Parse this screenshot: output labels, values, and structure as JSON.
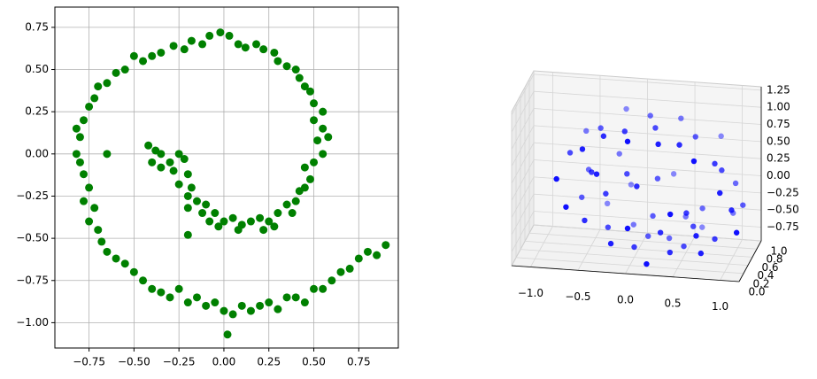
{
  "chart_data": [
    {
      "type": "scatter",
      "color": "#008000",
      "grid": true,
      "xlim": [
        -0.94,
        0.97
      ],
      "ylim": [
        -1.15,
        0.87
      ],
      "xticks": [
        {
          "value": -0.75,
          "label": "−0.75"
        },
        {
          "value": -0.5,
          "label": "−0.50"
        },
        {
          "value": -0.25,
          "label": "−0.25"
        },
        {
          "value": 0,
          "label": "0.00"
        },
        0.25,
        {
          "value": 0.5,
          "label": "0.50"
        },
        0.75
      ],
      "yticks": [
        {
          "value": -1,
          "label": "−1.00"
        },
        {
          "value": -0.75,
          "label": "−0.75"
        },
        {
          "value": -0.5,
          "label": "−0.50"
        },
        {
          "value": -0.25,
          "label": "−0.25"
        },
        {
          "value": 0,
          "label": "0.00"
        },
        0.25,
        {
          "value": 0.5,
          "label": "0.50"
        },
        0.75
      ],
      "x": [
        -0.42,
        -0.38,
        -0.35,
        -0.4,
        -0.3,
        -0.25,
        -0.22,
        -0.28,
        -0.35,
        -0.2,
        -0.25,
        -0.18,
        -0.2,
        -0.15,
        -0.1,
        -0.2,
        -0.12,
        -0.05,
        -0.08,
        0,
        0.05,
        -0.03,
        0.1,
        0.08,
        0.15,
        0.2,
        0.22,
        0.25,
        0.3,
        0.28,
        0.35,
        0.38,
        0.4,
        0.42,
        0.45,
        0.48,
        0.45,
        0.5,
        0.55,
        0.52,
        0.58,
        0.55,
        0.5,
        0.55,
        0.5,
        0.48,
        0.45,
        0.42,
        0.4,
        0.35,
        0.3,
        0.28,
        0.22,
        0.18,
        0.12,
        0.08,
        0.03,
        -0.02,
        -0.08,
        -0.12,
        -0.18,
        -0.22,
        -0.28,
        -0.35,
        -0.4,
        -0.45,
        -0.5,
        -0.55,
        -0.6,
        -0.65,
        -0.7,
        -0.72,
        -0.75,
        -0.78,
        -0.82,
        -0.8,
        -0.82,
        -0.8,
        -0.78,
        -0.75,
        -0.78,
        -0.72,
        -0.75,
        -0.7,
        -0.68,
        -0.65,
        -0.6,
        -0.55,
        -0.5,
        -0.45,
        -0.4,
        -0.35,
        -0.3,
        -0.25,
        -0.2,
        -0.15,
        -0.1,
        -0.05,
        0,
        0.05,
        0.1,
        0.15,
        0.2,
        0.25,
        0.3,
        0.35,
        0.4,
        0.45,
        0.5,
        0.55,
        0.6,
        0.65,
        0.7,
        0.75,
        0.8,
        0.85,
        0.9,
        0.02,
        -0.65,
        -0.2
      ],
      "values": [
        0.05,
        0.02,
        0,
        -0.05,
        -0.05,
        0,
        -0.03,
        -0.1,
        -0.08,
        -0.12,
        -0.18,
        -0.2,
        -0.25,
        -0.28,
        -0.3,
        -0.32,
        -0.35,
        -0.35,
        -0.4,
        -0.4,
        -0.38,
        -0.43,
        -0.42,
        -0.45,
        -0.4,
        -0.38,
        -0.45,
        -0.4,
        -0.35,
        -0.43,
        -0.3,
        -0.35,
        -0.28,
        -0.22,
        -0.2,
        -0.15,
        -0.08,
        -0.05,
        0,
        0.08,
        0.1,
        0.15,
        0.2,
        0.25,
        0.3,
        0.37,
        0.4,
        0.45,
        0.5,
        0.52,
        0.55,
        0.6,
        0.62,
        0.65,
        0.63,
        0.65,
        0.7,
        0.72,
        0.7,
        0.65,
        0.67,
        0.62,
        0.64,
        0.6,
        0.58,
        0.55,
        0.58,
        0.5,
        0.48,
        0.42,
        0.4,
        0.33,
        0.28,
        0.2,
        0.15,
        0.1,
        0,
        -0.05,
        -0.12,
        -0.2,
        -0.28,
        -0.32,
        -0.4,
        -0.45,
        -0.52,
        -0.58,
        -0.62,
        -0.65,
        -0.7,
        -0.75,
        -0.8,
        -0.82,
        -0.85,
        -0.8,
        -0.88,
        -0.85,
        -0.9,
        -0.88,
        -0.93,
        -0.95,
        -0.9,
        -0.93,
        -0.9,
        -0.88,
        -0.92,
        -0.85,
        -0.85,
        -0.88,
        -0.8,
        -0.8,
        -0.75,
        -0.7,
        -0.68,
        -0.62,
        -0.58,
        -0.6,
        -0.54,
        -1.07,
        0,
        -0.48
      ]
    },
    {
      "type": "scatter3d",
      "color": "#0000ff",
      "xlim": [
        -1.2,
        1.2
      ],
      "ylim": [
        0,
        1
      ],
      "zlim": [
        -0.95,
        1.3
      ],
      "xticks": [
        {
          "value": -1,
          "label": "−1.0"
        },
        {
          "value": -0.5,
          "label": "−0.5"
        },
        {
          "value": 0,
          "label": "0.0"
        },
        0.5,
        {
          "value": 1,
          "label": "1.0"
        }
      ],
      "yticks": [
        {
          "value": 0,
          "label": "0.0"
        },
        0.2,
        0.4,
        0.6,
        0.8,
        {
          "value": 1,
          "label": "1.0"
        }
      ],
      "zticks": [
        {
          "value": -0.75,
          "label": "−0.75"
        },
        {
          "value": -0.5,
          "label": "−0.50"
        },
        {
          "value": -0.25,
          "label": "−0.25"
        },
        {
          "value": 0,
          "label": "0.00"
        },
        0.25,
        {
          "value": 0.5,
          "label": "0.50"
        },
        0.75,
        {
          "value": 1,
          "label": "1.00"
        },
        1.25
      ],
      "x": [
        -0.75,
        -0.7,
        -0.6,
        -0.5,
        -0.4,
        -0.3,
        -0.2,
        -0.1,
        0,
        0.1,
        0.2,
        0.3,
        0.4,
        0.5,
        0.6,
        0.7,
        0.8,
        0.85,
        0.9,
        0.95,
        1.0,
        1.05,
        1.1,
        1.15,
        0.95,
        0.85,
        0.75,
        0.6,
        0.5,
        0.4,
        0.3,
        0.2,
        0.1,
        0,
        -0.1,
        -0.2,
        -0.3,
        -0.4,
        -0.5,
        -0.6,
        -0.65,
        -0.55,
        -0.45,
        -0.35,
        -0.25,
        -0.1,
        0.05,
        0.2,
        0.3,
        0.45,
        0.55,
        0.65,
        0.7,
        0.6,
        0.45,
        0.3,
        0.15,
        0,
        -0.15,
        -0.3
      ],
      "y": [
        0.1,
        0.5,
        0.8,
        0.2,
        0.6,
        0.3,
        0.9,
        0.4,
        0.1,
        0.7,
        0.5,
        0.2,
        0.8,
        0.3,
        0.6,
        0.1,
        0.9,
        0.4,
        0.5,
        0.2,
        0.7,
        0.3,
        0.6,
        0.1,
        0.8,
        0.4,
        0.2,
        0.9,
        0.5,
        0.3,
        0.7,
        0.1,
        0.6,
        0.4,
        0.8,
        0.2,
        0.5,
        0.9,
        0.3,
        0.6,
        0.1,
        0.7,
        0.4,
        0.2,
        0.8,
        0.5,
        0.3,
        0.6,
        0.9,
        0.1,
        0.4,
        0.7,
        0.2,
        0.5,
        0.8,
        0.3,
        0.6,
        0.1,
        0.9,
        0.4
      ],
      "z": [
        0.3,
        0.45,
        0.6,
        0.7,
        0.78,
        0.85,
        0.9,
        0.88,
        0.92,
        0.95,
        0.9,
        0.85,
        0.88,
        0.8,
        0.75,
        0.7,
        0.6,
        0.5,
        0.35,
        0.2,
        0.05,
        -0.1,
        -0.2,
        -0.3,
        -0.45,
        -0.6,
        -0.7,
        -0.75,
        -0.8,
        -0.78,
        -0.82,
        -0.85,
        -0.75,
        -0.8,
        -0.72,
        -0.65,
        -0.6,
        -0.5,
        -0.4,
        -0.25,
        -0.1,
        0.1,
        0.25,
        0.35,
        0.3,
        0.2,
        0.15,
        0.1,
        0.0,
        -0.1,
        -0.25,
        -0.35,
        -0.45,
        -0.5,
        -0.55,
        -0.5,
        -0.45,
        -0.35,
        -0.2,
        -0.05
      ]
    }
  ]
}
